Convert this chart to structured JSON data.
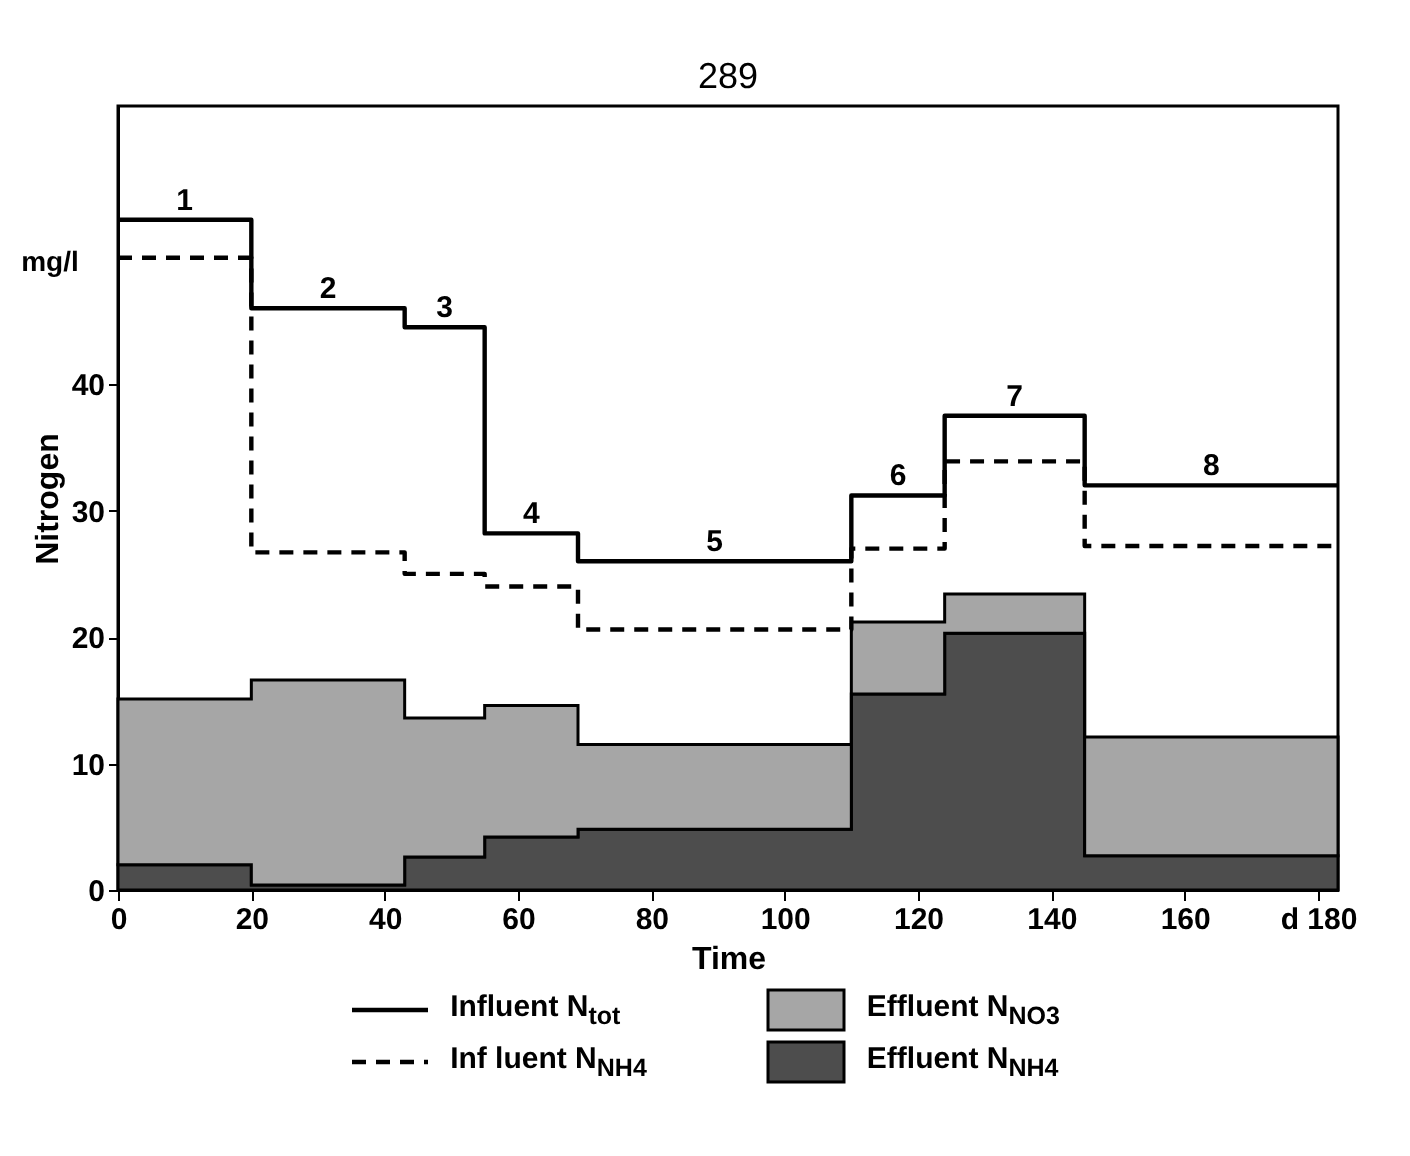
{
  "chart_data": {
    "type": "step",
    "xlabel": "Time",
    "ylabel": "Nitrogen",
    "x": [
      0,
      20,
      43,
      55,
      69,
      110,
      124,
      145,
      183
    ],
    "series": [
      {
        "name": "Effluent N$_{NH4}$",
        "type": "area",
        "color": "#4d4d4d",
        "values": [
          2,
          0.4,
          2.6,
          4.2,
          4.8,
          15.5,
          20.3,
          2.7,
          2.7
        ]
      },
      {
        "name": "Effluent N$_{NO3}$",
        "type": "area",
        "color": "#a6a6a6",
        "values": [
          13.1,
          16.2,
          11,
          10.4,
          6.7,
          5.7,
          3.1,
          9.4,
          9.4
        ]
      },
      {
        "name": "Influent N$_{tot}$",
        "color": "#000000",
        "line_style": "solid",
        "values": [
          53,
          46,
          44.5,
          28.2,
          26,
          31.2,
          37.5,
          32,
          32
        ]
      },
      {
        "name": "Inf luent N$_{NH4}$",
        "color": "#000000",
        "line_style": "dashed",
        "values": [
          50,
          26.7,
          25,
          24,
          20.6,
          27,
          33.9,
          27.2,
          27.2
        ]
      }
    ],
    "stacked": true,
    "xlim": [
      0,
      183
    ],
    "ylim": [
      0,
      62
    ],
    "xticks": [
      0,
      20,
      40,
      60,
      80,
      100,
      120,
      140,
      160,
      {
        "value": 180,
        "label": "d 180"
      }
    ],
    "yticks": [
      0,
      10,
      20,
      30,
      40
    ],
    "annotations": [
      "289",
      "mg/l",
      {
        "text": "1",
        "x": 10,
        "y": 53
      },
      {
        "text": "2",
        "x": 31.5,
        "y": 46
      },
      {
        "text": "3",
        "x": 49,
        "y": 44.5
      },
      {
        "text": "4",
        "x": 62,
        "y": 28.2
      },
      {
        "text": "5",
        "x": 89.5,
        "y": 26
      },
      {
        "text": "6",
        "x": 117,
        "y": 31.2
      },
      {
        "text": "7",
        "x": 134.5,
        "y": 37.5
      },
      {
        "text": "8",
        "x": 164,
        "y": 32
      }
    ],
    "legend": "bottom",
    "grid": false
  }
}
